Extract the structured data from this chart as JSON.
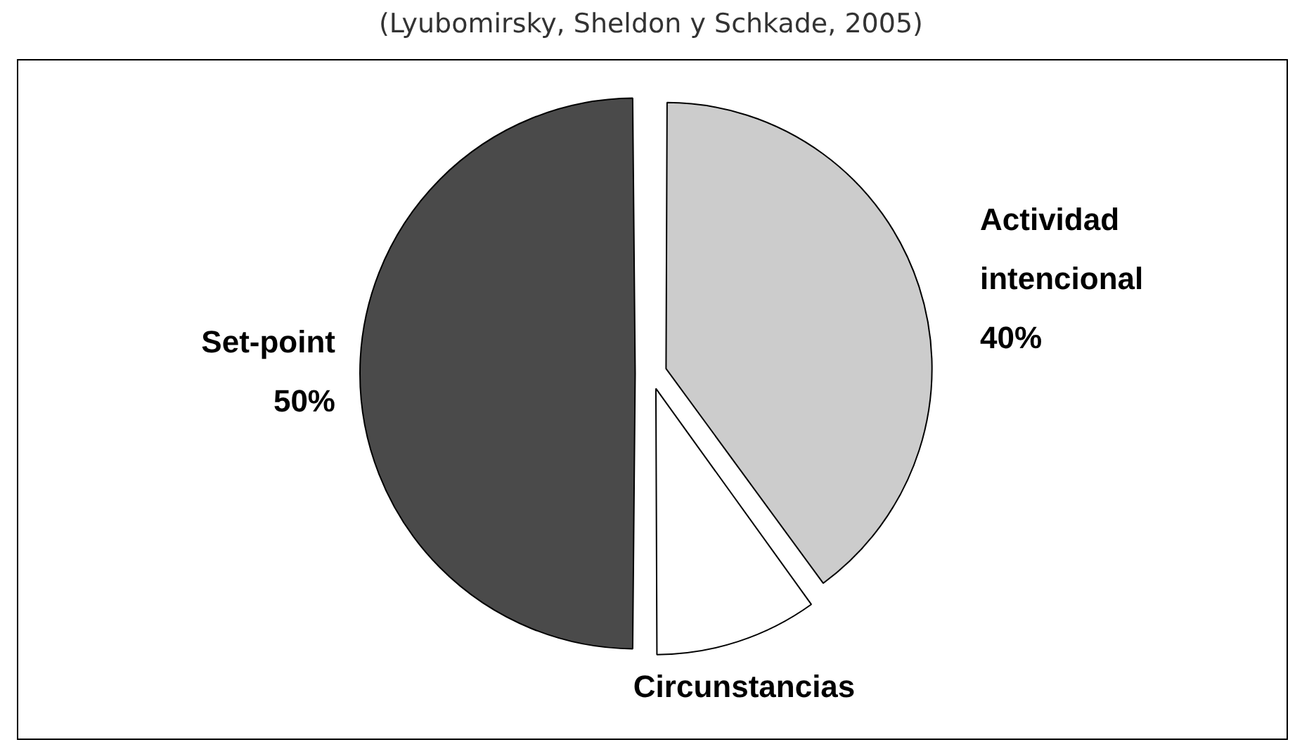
{
  "chart_data": {
    "type": "pie",
    "title": "(Lyubomirsky, Sheldon y Schkade, 2005)",
    "categories": [
      "Actividad intencional",
      "Circunstancias",
      "Set-point"
    ],
    "values": [
      40,
      10,
      50
    ],
    "value_labels": [
      "40%",
      null,
      "50%"
    ],
    "colors": [
      "#cccccc",
      "#ffffff",
      "#4a4a4a"
    ],
    "legend": false
  }
}
